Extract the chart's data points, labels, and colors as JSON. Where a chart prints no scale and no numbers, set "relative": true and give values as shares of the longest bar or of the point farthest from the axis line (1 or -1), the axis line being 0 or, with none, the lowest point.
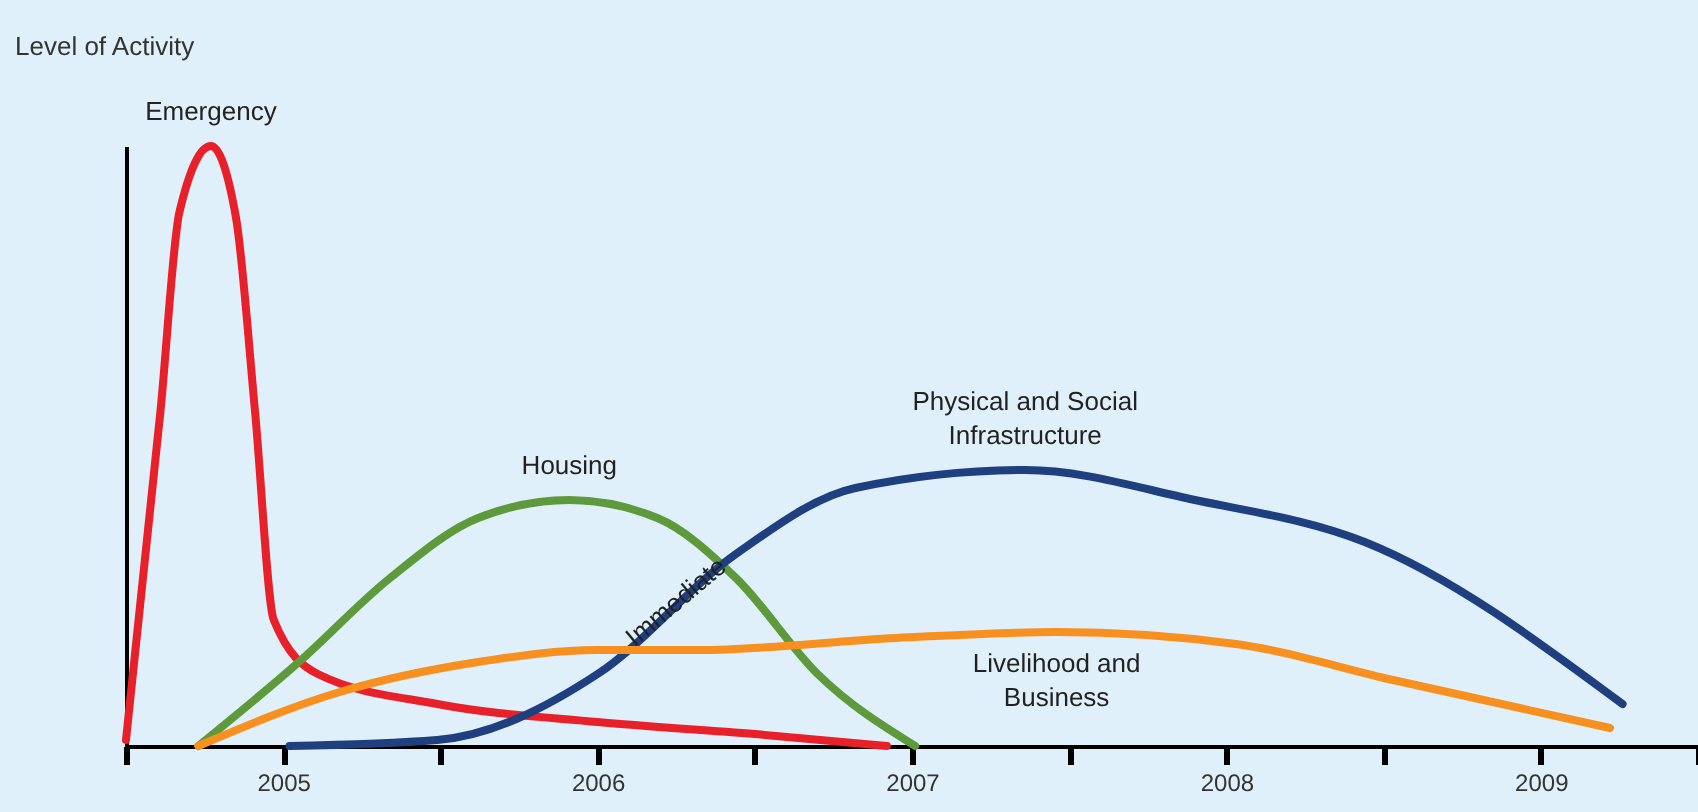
{
  "chart_data": {
    "type": "line",
    "relative": true,
    "ylabel": "Level of Activity",
    "xlim": [
      2005,
      2010
    ],
    "xticks": [
      {
        "value": 2005,
        "label": null
      },
      {
        "value": 2005.5,
        "label": "2005"
      },
      {
        "value": 2006,
        "label": null
      },
      {
        "value": 2006.5,
        "label": "2006"
      },
      {
        "value": 2007,
        "label": null
      },
      {
        "value": 2007.5,
        "label": "2007"
      },
      {
        "value": 2008,
        "label": null
      },
      {
        "value": 2008.5,
        "label": "2008"
      },
      {
        "value": 2009,
        "label": null
      },
      {
        "value": 2009.5,
        "label": "2009"
      },
      {
        "value": 2010,
        "label": null
      }
    ],
    "series": [
      {
        "name": "Emergency",
        "color": "#e8202a",
        "x": [
          2005.0,
          2005.11,
          2005.17,
          2005.27,
          2005.35,
          2005.41,
          2005.47,
          2005.61,
          2005.99,
          2006.5,
          2007.0,
          2007.42
        ],
        "values": [
          0.01,
          0.56,
          0.89,
          1.0,
          0.88,
          0.56,
          0.21,
          0.12,
          0.07,
          0.04,
          0.02,
          0.0
        ]
      },
      {
        "name": "Housing",
        "color": "#5e9a3c",
        "x": [
          2005.23,
          2005.55,
          2005.84,
          2006.12,
          2006.41,
          2006.69,
          2006.94,
          2007.2,
          2007.51
        ],
        "values": [
          0.0,
          0.14,
          0.28,
          0.38,
          0.41,
          0.38,
          0.28,
          0.12,
          0.0
        ]
      },
      {
        "name": "Physical and Social Infrastructure",
        "color": "#1f3f7f",
        "x": [
          2005.52,
          2005.99,
          2006.5,
          2006.94,
          2007.32,
          2007.86,
          2008.4,
          2008.94,
          2009.76
        ],
        "values": [
          0.0,
          0.01,
          0.12,
          0.32,
          0.43,
          0.46,
          0.41,
          0.34,
          0.07
        ]
      },
      {
        "name": "Livelihood and Business",
        "color": "#f7901e",
        "x": [
          2005.23,
          2005.68,
          2006.12,
          2006.5,
          2006.82,
          2007.45,
          2007.96,
          2008.53,
          2009.03,
          2009.72
        ],
        "values": [
          0.0,
          0.09,
          0.14,
          0.16,
          0.16,
          0.18,
          0.19,
          0.17,
          0.11,
          0.03
        ]
      }
    ],
    "annotations": [
      {
        "text": "Immediate",
        "x": 2006.75,
        "y": 0.24
      }
    ],
    "legend": false,
    "grid": false,
    "marker": "none",
    "line_style": "solid"
  }
}
